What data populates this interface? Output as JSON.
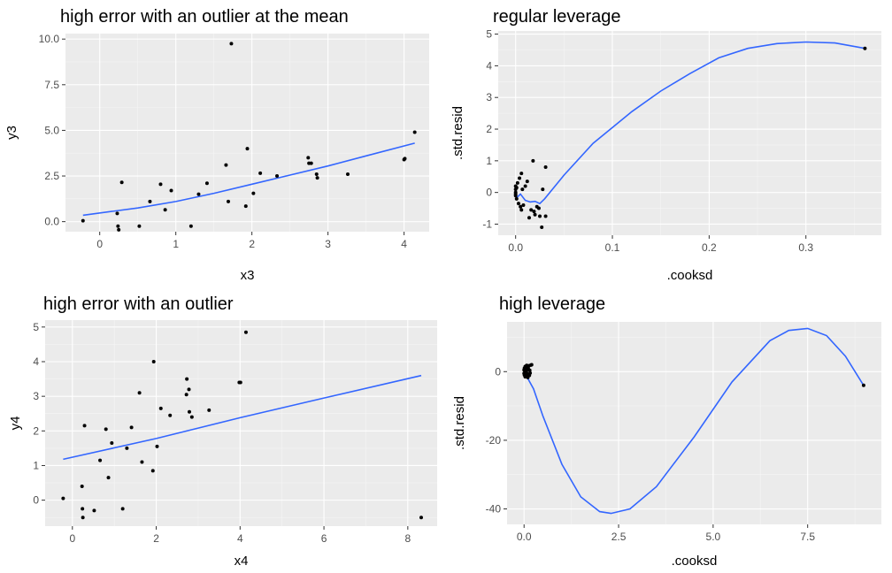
{
  "colors": {
    "panel_background": "#ebebeb",
    "grid": "#ffffff",
    "points": "#000000",
    "smooth_line": "#3366ff",
    "tick_text": "#4d4d4d"
  },
  "chart_data": [
    {
      "type": "scatter",
      "title": "high error with an outlier at the mean",
      "xlabel": "x3",
      "ylabel": "y3",
      "xlim": [
        -0.45,
        4.33
      ],
      "ylim": [
        -0.55,
        10.3
      ],
      "xticks": [
        0,
        1,
        2,
        3,
        4
      ],
      "xtick_labels": [
        "0",
        "1",
        "2",
        "3",
        "4"
      ],
      "yticks": [
        0,
        2.5,
        5,
        7.5,
        10
      ],
      "ytick_labels": [
        "0.0",
        "2.5",
        "5.0",
        "7.5",
        "10.0"
      ],
      "grid": true,
      "points": {
        "x": [
          -0.22,
          0.23,
          0.24,
          0.25,
          0.29,
          0.52,
          0.66,
          0.8,
          0.86,
          0.94,
          1.2,
          1.3,
          1.41,
          1.66,
          1.69,
          1.73,
          1.92,
          1.94,
          2.02,
          2.11,
          2.33,
          2.74,
          2.75,
          2.78,
          2.85,
          2.86,
          3.26,
          4.0,
          4.01,
          4.14
        ],
        "y": [
          0.05,
          0.45,
          -0.25,
          -0.45,
          2.15,
          -0.25,
          1.1,
          2.05,
          0.65,
          1.7,
          -0.25,
          1.5,
          2.1,
          3.1,
          1.1,
          9.75,
          0.85,
          4.0,
          1.55,
          2.65,
          2.5,
          3.5,
          3.2,
          3.2,
          2.6,
          2.4,
          2.6,
          3.4,
          3.45,
          4.9
        ]
      },
      "smooth": {
        "x": [
          -0.22,
          0.5,
          1.0,
          1.5,
          2.0,
          2.5,
          3.0,
          3.5,
          4.14
        ],
        "y": [
          0.35,
          0.75,
          1.1,
          1.55,
          2.05,
          2.55,
          3.05,
          3.6,
          4.3
        ]
      }
    },
    {
      "type": "scatter",
      "title": "regular leverage",
      "xlabel": ".cooksd",
      "ylabel": ".std.resid",
      "xlim": [
        -0.018,
        0.378
      ],
      "ylim": [
        -1.35,
        5.1
      ],
      "xticks": [
        0,
        0.1,
        0.2,
        0.3
      ],
      "xtick_labels": [
        "0.0",
        "0.1",
        "0.2",
        "0.3"
      ],
      "yticks": [
        -1,
        0,
        1,
        2,
        3,
        4,
        5
      ],
      "ytick_labels": [
        "-1",
        "0",
        "1",
        "2",
        "3",
        "4",
        "5"
      ],
      "grid": true,
      "points": {
        "x": [
          0.0,
          0.0,
          0.0,
          0.0,
          0.001,
          0.001,
          0.002,
          0.003,
          0.004,
          0.005,
          0.006,
          0.006,
          0.007,
          0.008,
          0.01,
          0.012,
          0.014,
          0.016,
          0.018,
          0.019,
          0.02,
          0.022,
          0.024,
          0.025,
          0.027,
          0.028,
          0.031,
          0.031,
          0.361,
          0.0
        ],
        "y": [
          0.1,
          -0.05,
          0.2,
          -0.1,
          0.15,
          -0.2,
          0.3,
          -0.35,
          0.45,
          -0.45,
          0.6,
          -0.55,
          0.1,
          -0.4,
          0.2,
          0.35,
          -0.8,
          -0.55,
          1.0,
          -0.6,
          -0.7,
          -0.45,
          -0.5,
          -0.75,
          -1.1,
          0.1,
          0.8,
          -0.75,
          4.55,
          0.0
        ]
      },
      "smooth": {
        "x": [
          0.0,
          0.005,
          0.01,
          0.015,
          0.02,
          0.025,
          0.03,
          0.05,
          0.08,
          0.1,
          0.12,
          0.15,
          0.18,
          0.21,
          0.24,
          0.27,
          0.3,
          0.33,
          0.361
        ],
        "y": [
          -0.2,
          -0.05,
          -0.25,
          -0.3,
          -0.28,
          -0.35,
          -0.2,
          0.55,
          1.55,
          2.05,
          2.55,
          3.2,
          3.75,
          4.25,
          4.55,
          4.7,
          4.75,
          4.72,
          4.55
        ]
      }
    },
    {
      "type": "scatter",
      "title": "high error with an outlier",
      "xlabel": "x4",
      "ylabel": "y4",
      "xlim": [
        -0.65,
        8.7
      ],
      "ylim": [
        -0.75,
        5.2
      ],
      "xticks": [
        0,
        2,
        4,
        6,
        8
      ],
      "xtick_labels": [
        "0",
        "2",
        "4",
        "6",
        "8"
      ],
      "yticks": [
        0,
        1,
        2,
        3,
        4,
        5
      ],
      "ytick_labels": [
        "0",
        "1",
        "2",
        "3",
        "4",
        "5"
      ],
      "grid": true,
      "points": {
        "x": [
          -0.22,
          0.23,
          0.24,
          0.25,
          0.29,
          0.52,
          0.66,
          0.8,
          0.86,
          0.94,
          1.2,
          1.3,
          1.41,
          1.6,
          1.66,
          1.92,
          1.94,
          2.02,
          2.11,
          2.33,
          2.72,
          2.73,
          2.78,
          2.79,
          2.85,
          3.26,
          3.98,
          4.01,
          4.14,
          8.32
        ],
        "y": [
          0.05,
          0.4,
          -0.25,
          -0.5,
          2.15,
          -0.3,
          1.15,
          2.05,
          0.65,
          1.65,
          -0.25,
          1.5,
          2.1,
          3.1,
          1.1,
          0.85,
          4.0,
          1.55,
          2.65,
          2.45,
          3.05,
          3.5,
          3.2,
          2.55,
          2.4,
          2.6,
          3.4,
          3.4,
          4.85,
          -0.5
        ]
      },
      "smooth": {
        "x": [
          -0.22,
          2.0,
          4.0,
          6.0,
          8.32
        ],
        "y": [
          1.18,
          1.78,
          2.38,
          2.95,
          3.6
        ]
      }
    },
    {
      "type": "scatter",
      "title": "high leverage",
      "xlabel": ".cooksd",
      "ylabel": ".std.resid",
      "xlim": [
        -0.45,
        9.45
      ],
      "ylim": [
        -44.5,
        14.5
      ],
      "xticks": [
        0,
        2.5,
        5,
        7.5
      ],
      "xtick_labels": [
        "0.0",
        "2.5",
        "5.0",
        "7.5"
      ],
      "yticks": [
        -40,
        -20,
        0
      ],
      "ytick_labels": [
        "-40",
        "-20",
        "0"
      ],
      "grid": true,
      "points": {
        "x": [
          0.0,
          0.0,
          0.01,
          0.01,
          0.02,
          0.02,
          0.03,
          0.03,
          0.04,
          0.04,
          0.05,
          0.05,
          0.06,
          0.06,
          0.07,
          0.08,
          0.08,
          0.09,
          0.1,
          0.11,
          0.12,
          0.13,
          0.14,
          0.15,
          0.16,
          0.18,
          0.2,
          0.05,
          0.1,
          8.98
        ],
        "y": [
          0.5,
          -0.5,
          1.0,
          -1.0,
          0.3,
          -0.3,
          1.5,
          -1.5,
          0.8,
          -0.8,
          1.2,
          -1.2,
          0.2,
          -0.2,
          1.8,
          0.6,
          -0.6,
          1.4,
          -1.4,
          0.9,
          -0.9,
          1.7,
          -1.1,
          0.4,
          -0.4,
          1.9,
          2.0,
          1.6,
          -1.7,
          -4.0
        ]
      },
      "smooth": {
        "x": [
          0.0,
          0.25,
          0.5,
          1.0,
          1.5,
          2.0,
          2.3,
          2.8,
          3.5,
          4.5,
          5.5,
          6.5,
          7.0,
          7.5,
          8.0,
          8.5,
          8.98
        ],
        "y": [
          0.0,
          -5.0,
          -13.0,
          -27.0,
          -36.5,
          -40.8,
          -41.3,
          -40.0,
          -33.5,
          -19.0,
          -3.0,
          9.0,
          12.0,
          12.6,
          10.5,
          4.5,
          -4.0
        ]
      }
    }
  ]
}
